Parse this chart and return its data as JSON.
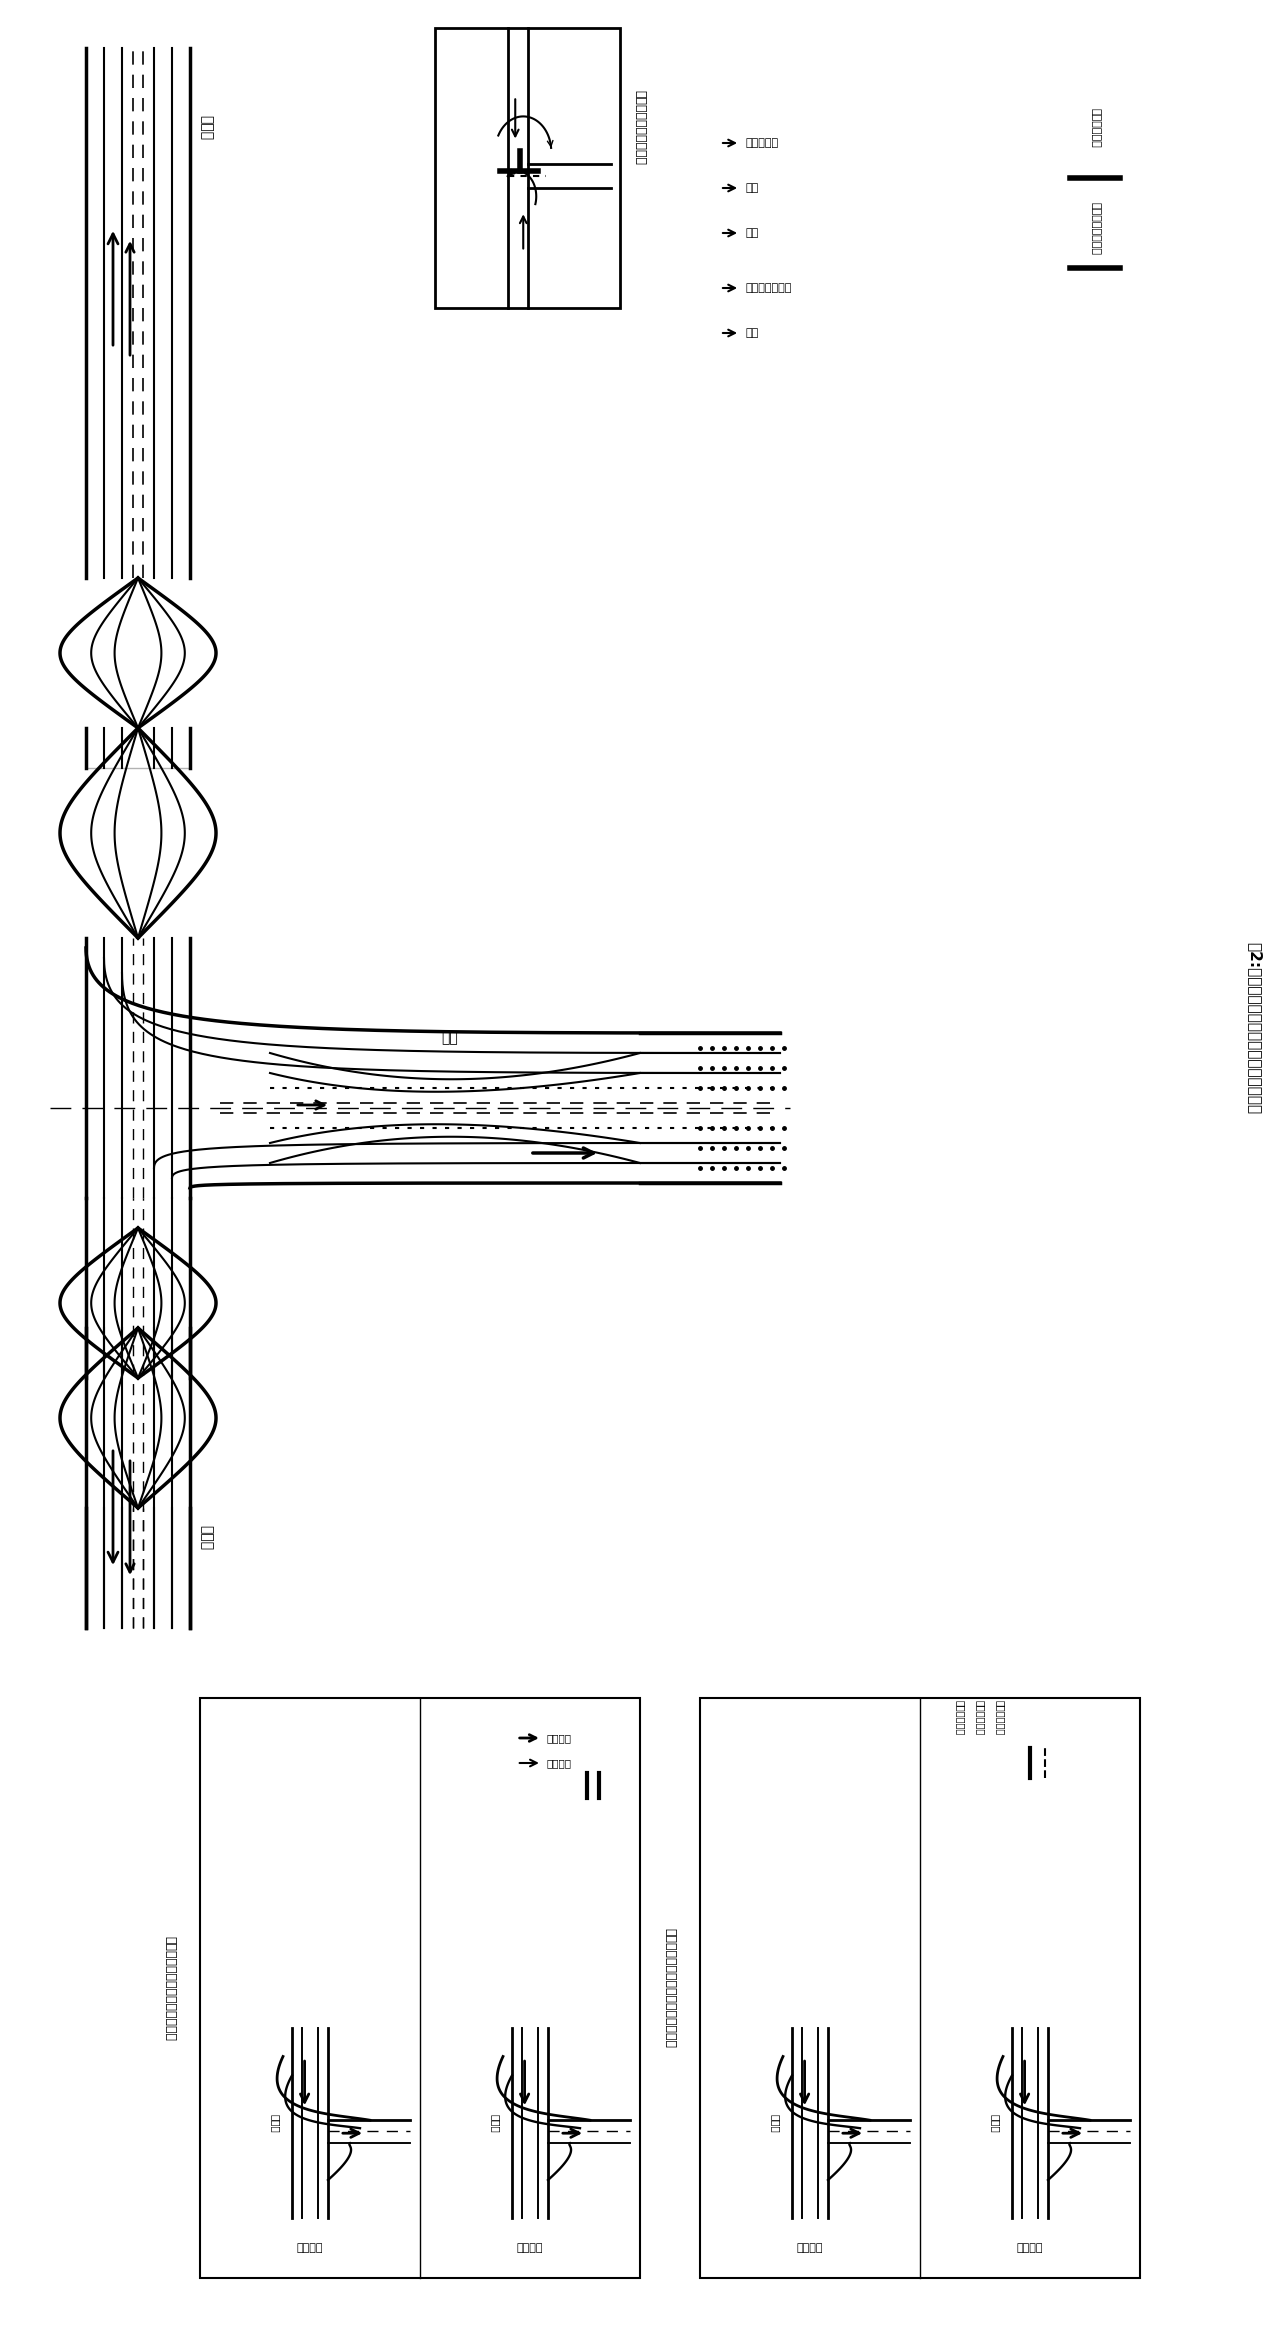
{
  "title": "图2:双换道丁字交叉口交通组织与相位图",
  "bg_color": "#ffffff",
  "line_color": "#000000",
  "main_road_label_top": "主干道",
  "main_road_label_bottom": "主干道",
  "label_zhulu": "主路",
  "legend_title": "交叉口交通流向分析：",
  "legend_items_left": [
    "主路：右转",
    "直行",
    "左转"
  ],
  "legend_items_right": [
    "被交叉路：右转",
    "左转"
  ],
  "legend_line1": "主路交通流向",
  "legend_line2": "被交叉路交通流向",
  "fig_label_tl": "丁字路口交叉路发展方案相位图",
  "fig_label_bl": "丁字路口交叉路发展方案人行相位图",
  "sub_label_1a": "第二相位",
  "sub_label_1b": "主干道",
  "sub_label_2a": "第二相位",
  "sub_label_2b": "主干道",
  "sub_top_label_l": "第一相位",
  "sub_top_label_r": "第二相位",
  "box1_legend1": "第一相位",
  "box1_legend2": "第二相位",
  "box2_legend1": "行人禁止通行",
  "box2_legend2": "行人优先通行",
  "box2_legend3": "行人允许通行"
}
